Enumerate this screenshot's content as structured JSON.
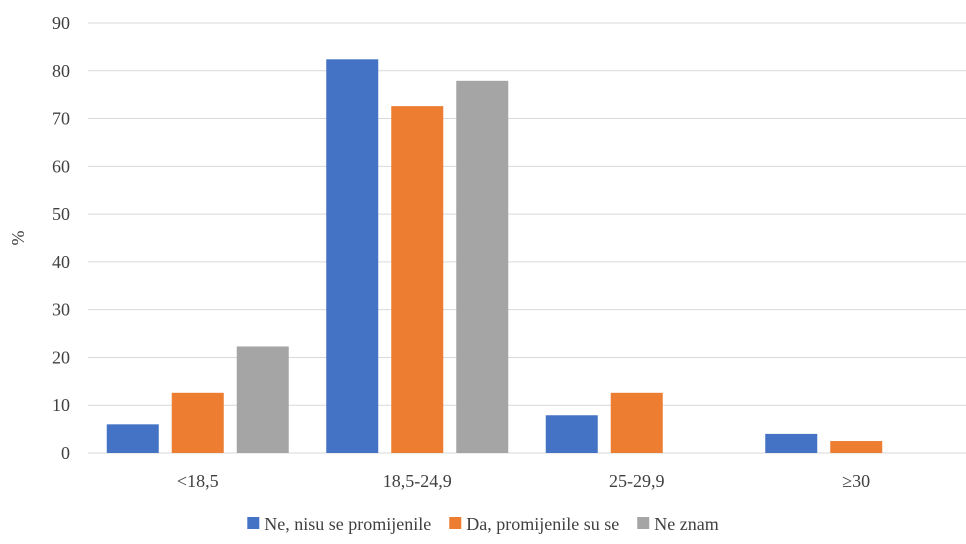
{
  "chart_data": {
    "type": "bar",
    "title": "",
    "xlabel": "",
    "ylabel": "%",
    "ylim": [
      0,
      90
    ],
    "ytick_step": 10,
    "grid": true,
    "legend_position": "bottom",
    "categories": [
      "<18,5",
      "18,5-24,9",
      "25-29,9",
      "≥30"
    ],
    "series": [
      {
        "name": "Ne, nisu se promijenile",
        "color": "#4472C4",
        "values": [
          6.0,
          82.4,
          7.9,
          4.0
        ]
      },
      {
        "name": "Da, promijenile su se",
        "color": "#ED7D31",
        "values": [
          12.6,
          72.6,
          12.6,
          2.5
        ]
      },
      {
        "name": "Ne znam",
        "color": "#A5A5A5",
        "values": [
          22.3,
          77.9,
          0,
          0
        ]
      }
    ]
  }
}
